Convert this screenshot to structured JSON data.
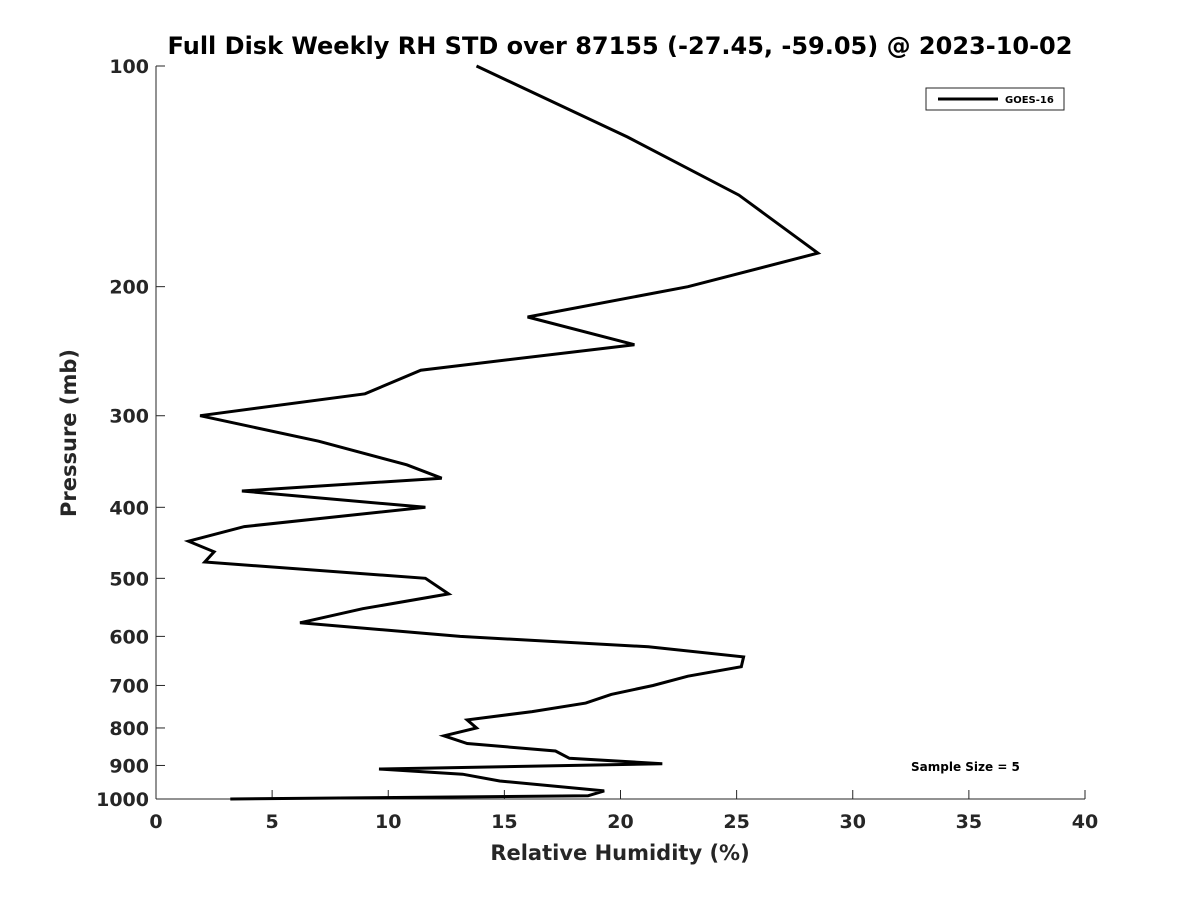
{
  "chart_data": {
    "type": "line",
    "title": "Full Disk Weekly RH STD over 87155 (-27.45, -59.05) @ 2023-10-02",
    "xlabel": "Relative Humidity (%)",
    "ylabel": "Pressure (mb)",
    "xlim": [
      0,
      40
    ],
    "ylim": [
      100,
      1000
    ],
    "y_scale": "log",
    "y_reversed": true,
    "x_ticks": [
      0,
      5,
      10,
      15,
      20,
      25,
      30,
      35,
      40
    ],
    "y_ticks": [
      100,
      200,
      300,
      400,
      500,
      600,
      700,
      800,
      900,
      1000
    ],
    "grid": false,
    "legend_position": "top-right",
    "annotation": "Sample Size = 5",
    "series": [
      {
        "name": "GOES-16",
        "color": "#000000",
        "points": [
          [
            13.8,
            100
          ],
          [
            20.3,
            125
          ],
          [
            25.1,
            150
          ],
          [
            28.5,
            180
          ],
          [
            22.9,
            200
          ],
          [
            16.0,
            220
          ],
          [
            20.6,
            240
          ],
          [
            11.4,
            260
          ],
          [
            9.0,
            280
          ],
          [
            1.9,
            300
          ],
          [
            7.0,
            325
          ],
          [
            10.8,
            350
          ],
          [
            12.3,
            365
          ],
          [
            3.7,
            380
          ],
          [
            11.6,
            400
          ],
          [
            3.8,
            425
          ],
          [
            1.4,
            445
          ],
          [
            2.5,
            460
          ],
          [
            2.1,
            475
          ],
          [
            11.6,
            500
          ],
          [
            12.6,
            525
          ],
          [
            8.9,
            550
          ],
          [
            6.2,
            575
          ],
          [
            13.1,
            600
          ],
          [
            21.2,
            620
          ],
          [
            25.3,
            640
          ],
          [
            25.2,
            660
          ],
          [
            22.9,
            680
          ],
          [
            21.4,
            700
          ],
          [
            19.6,
            720
          ],
          [
            18.5,
            740
          ],
          [
            16.2,
            760
          ],
          [
            13.4,
            780
          ],
          [
            13.8,
            800
          ],
          [
            12.4,
            820
          ],
          [
            13.4,
            840
          ],
          [
            17.2,
            860
          ],
          [
            17.8,
            880
          ],
          [
            21.8,
            895
          ],
          [
            9.6,
            910
          ],
          [
            13.2,
            925
          ],
          [
            14.8,
            945
          ],
          [
            19.3,
            975
          ],
          [
            18.6,
            990
          ],
          [
            3.2,
            1000
          ]
        ]
      }
    ]
  }
}
